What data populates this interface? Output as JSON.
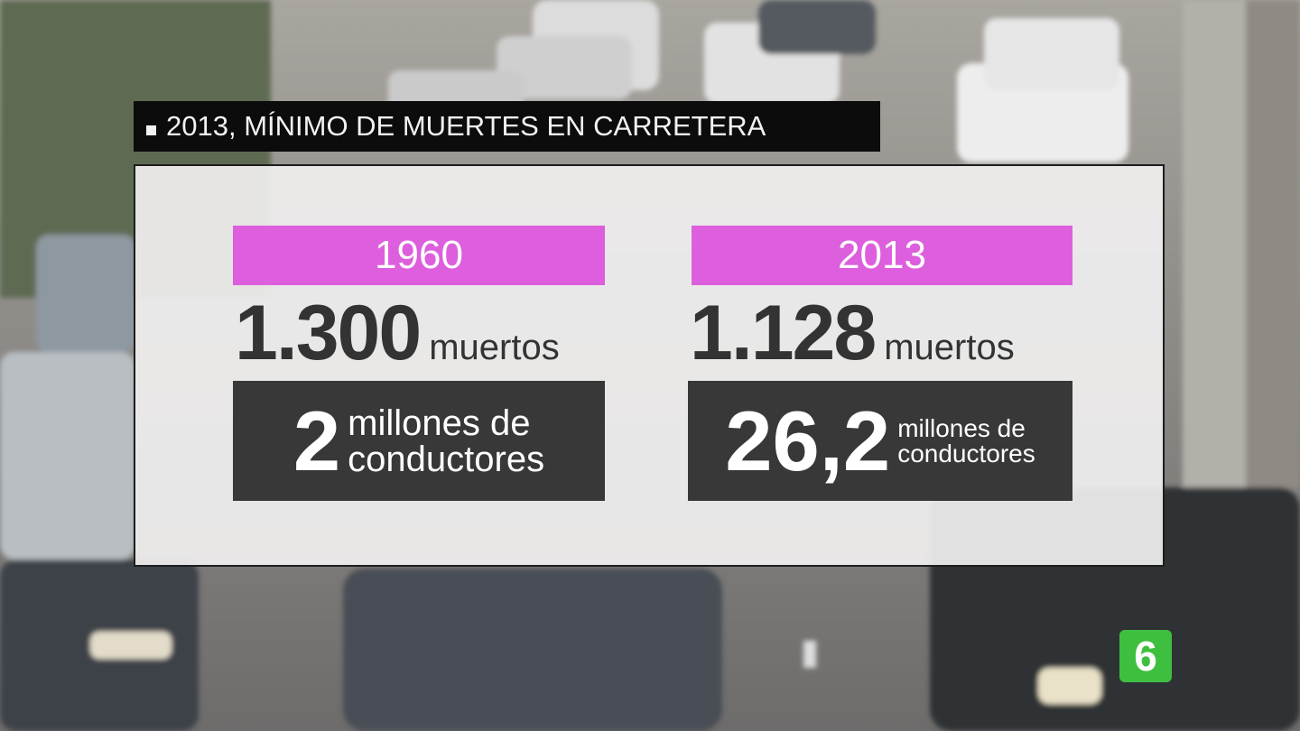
{
  "header": {
    "title": "2013, MÍNIMO DE MUERTES EN CARRETERA"
  },
  "columns": [
    {
      "year": "1960",
      "deaths": "1.300",
      "deaths_unit": "muertos",
      "drivers": "2",
      "drivers_unit": [
        "millones de",
        "conductores"
      ]
    },
    {
      "year": "2013",
      "deaths": "1.128",
      "deaths_unit": "muertos",
      "drivers": "26,2",
      "drivers_unit": [
        "millones de",
        "conductores"
      ]
    }
  ],
  "logo": "6"
}
